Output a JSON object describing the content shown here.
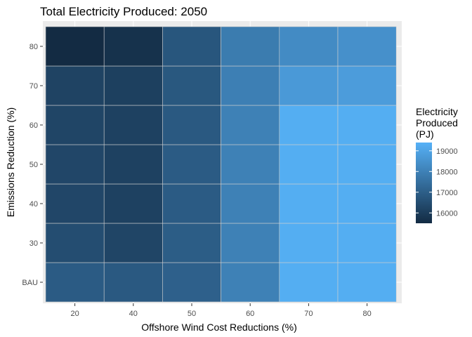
{
  "chart_data": {
    "type": "heatmap",
    "title": "Total Electricity Produced: 2050",
    "xlabel": "Offshore Wind Cost Reductions (%)",
    "ylabel": "Emissions Reduction (%)",
    "x_categories": [
      "20",
      "40",
      "50",
      "60",
      "70",
      "80"
    ],
    "y_categories": [
      "BAU",
      "30",
      "40",
      "50",
      "60",
      "70",
      "80"
    ],
    "values": [
      [
        16900,
        16850,
        17050,
        18000,
        19300,
        19300
      ],
      [
        16500,
        16250,
        16950,
        18000,
        19300,
        19300
      ],
      [
        16300,
        16150,
        16900,
        18000,
        19300,
        19300
      ],
      [
        16300,
        16150,
        16900,
        18000,
        19300,
        19300
      ],
      [
        16250,
        16150,
        16850,
        18000,
        19300,
        19300
      ],
      [
        16200,
        16100,
        16800,
        17950,
        18700,
        18800
      ],
      [
        15500,
        15700,
        16750,
        17850,
        18300,
        18450
      ]
    ],
    "legend": {
      "title_lines": [
        "Electricity",
        "Produced",
        "(PJ)"
      ],
      "ticks": [
        16000,
        17000,
        18000,
        19000
      ],
      "range": [
        15500,
        19400
      ],
      "low_color": "#132B43",
      "high_color": "#56B1F7",
      "placement": "right"
    },
    "panel_color": "#EBEBEB",
    "grid": true
  }
}
